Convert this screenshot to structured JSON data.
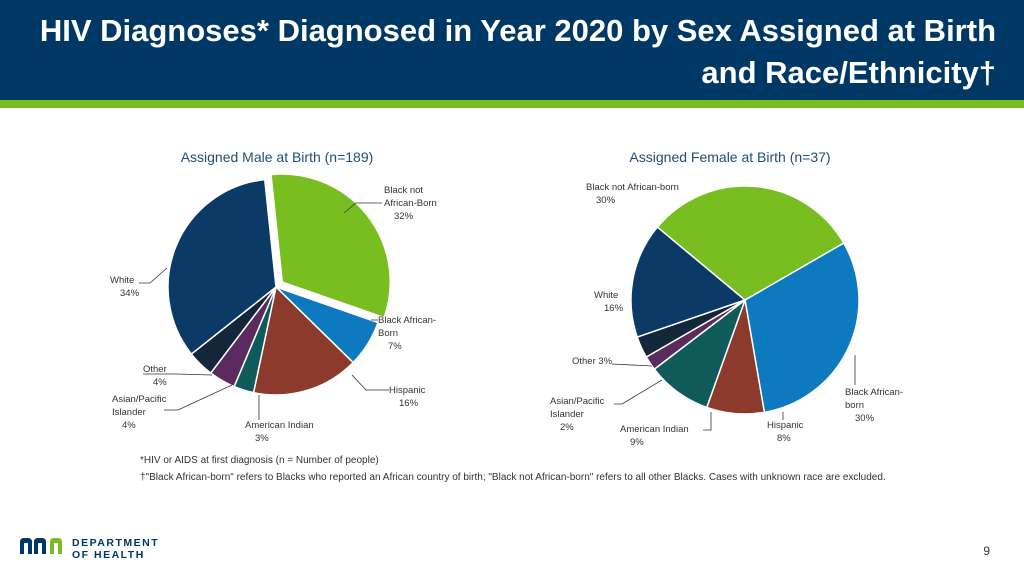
{
  "header": {
    "title": "HIV Diagnoses* Diagnosed in Year 2020 by Sex Assigned at Birth and Race/Ethnicity†"
  },
  "chart_data": [
    {
      "type": "pie",
      "title": "Assigned Male at Birth (n=189)",
      "slices": [
        {
          "label": "Black not African-Born",
          "value": 32,
          "display": [
            "Black not",
            "African-Born",
            "32%"
          ],
          "color": "#78be20"
        },
        {
          "label": "Black African-Born",
          "value": 7,
          "display": [
            "Black African-",
            "Born",
            "7%"
          ],
          "color": "#0d7ac0"
        },
        {
          "label": "Hispanic",
          "value": 16,
          "display": [
            "Hispanic",
            "16%"
          ],
          "color": "#8b3a2b"
        },
        {
          "label": "American Indian",
          "value": 3,
          "display": [
            "American Indian",
            "3%"
          ],
          "color": "#0f5a5a"
        },
        {
          "label": "Asian/Pacific Islander",
          "value": 4,
          "display": [
            "Asian/Pacific",
            "Islander",
            "4%"
          ],
          "color": "#5b2a5e"
        },
        {
          "label": "Other",
          "value": 4,
          "display": [
            "Other",
            "4%"
          ],
          "color": "#14263a"
        },
        {
          "label": "White",
          "value": 34,
          "display": [
            "White",
            "34%"
          ],
          "color": "#0b3a66"
        }
      ]
    },
    {
      "type": "pie",
      "title": "Assigned Female at Birth (n=37)",
      "slices": [
        {
          "label": "Black African-born",
          "value": 30,
          "display": [
            "Black African-",
            "born",
            "30%"
          ],
          "color": "#0d7ac0"
        },
        {
          "label": "Hispanic",
          "value": 8,
          "display": [
            "Hispanic",
            "8%"
          ],
          "color": "#8b3a2b"
        },
        {
          "label": "American Indian",
          "value": 9,
          "display": [
            "American Indian",
            "9%"
          ],
          "color": "#0f5a5a"
        },
        {
          "label": "Asian/Pacific Islander",
          "value": 2,
          "display": [
            "Asian/Pacific",
            "Islander",
            "2%"
          ],
          "color": "#5b2a5e"
        },
        {
          "label": "Other",
          "value": 3,
          "display": [
            "Other 3%"
          ],
          "color": "#14263a"
        },
        {
          "label": "White",
          "value": 16,
          "display": [
            "White",
            "16%"
          ],
          "color": "#0b3a66"
        },
        {
          "label": "Black not African-born",
          "value": 30,
          "display": [
            "Black not African-born",
            "30%"
          ],
          "color": "#78be20"
        }
      ]
    }
  ],
  "footnotes": {
    "note1": "*HIV or AIDS at first diagnosis  (n = Number of people)",
    "note2": "†\"Black African-born\" refers to Blacks who reported an African country of birth; \"Black not African-born\" refers to all other Blacks.  Cases with unknown race are excluded."
  },
  "logo": {
    "line1": "DEPARTMENT",
    "line2": "OF HEALTH"
  },
  "page_number": "9"
}
